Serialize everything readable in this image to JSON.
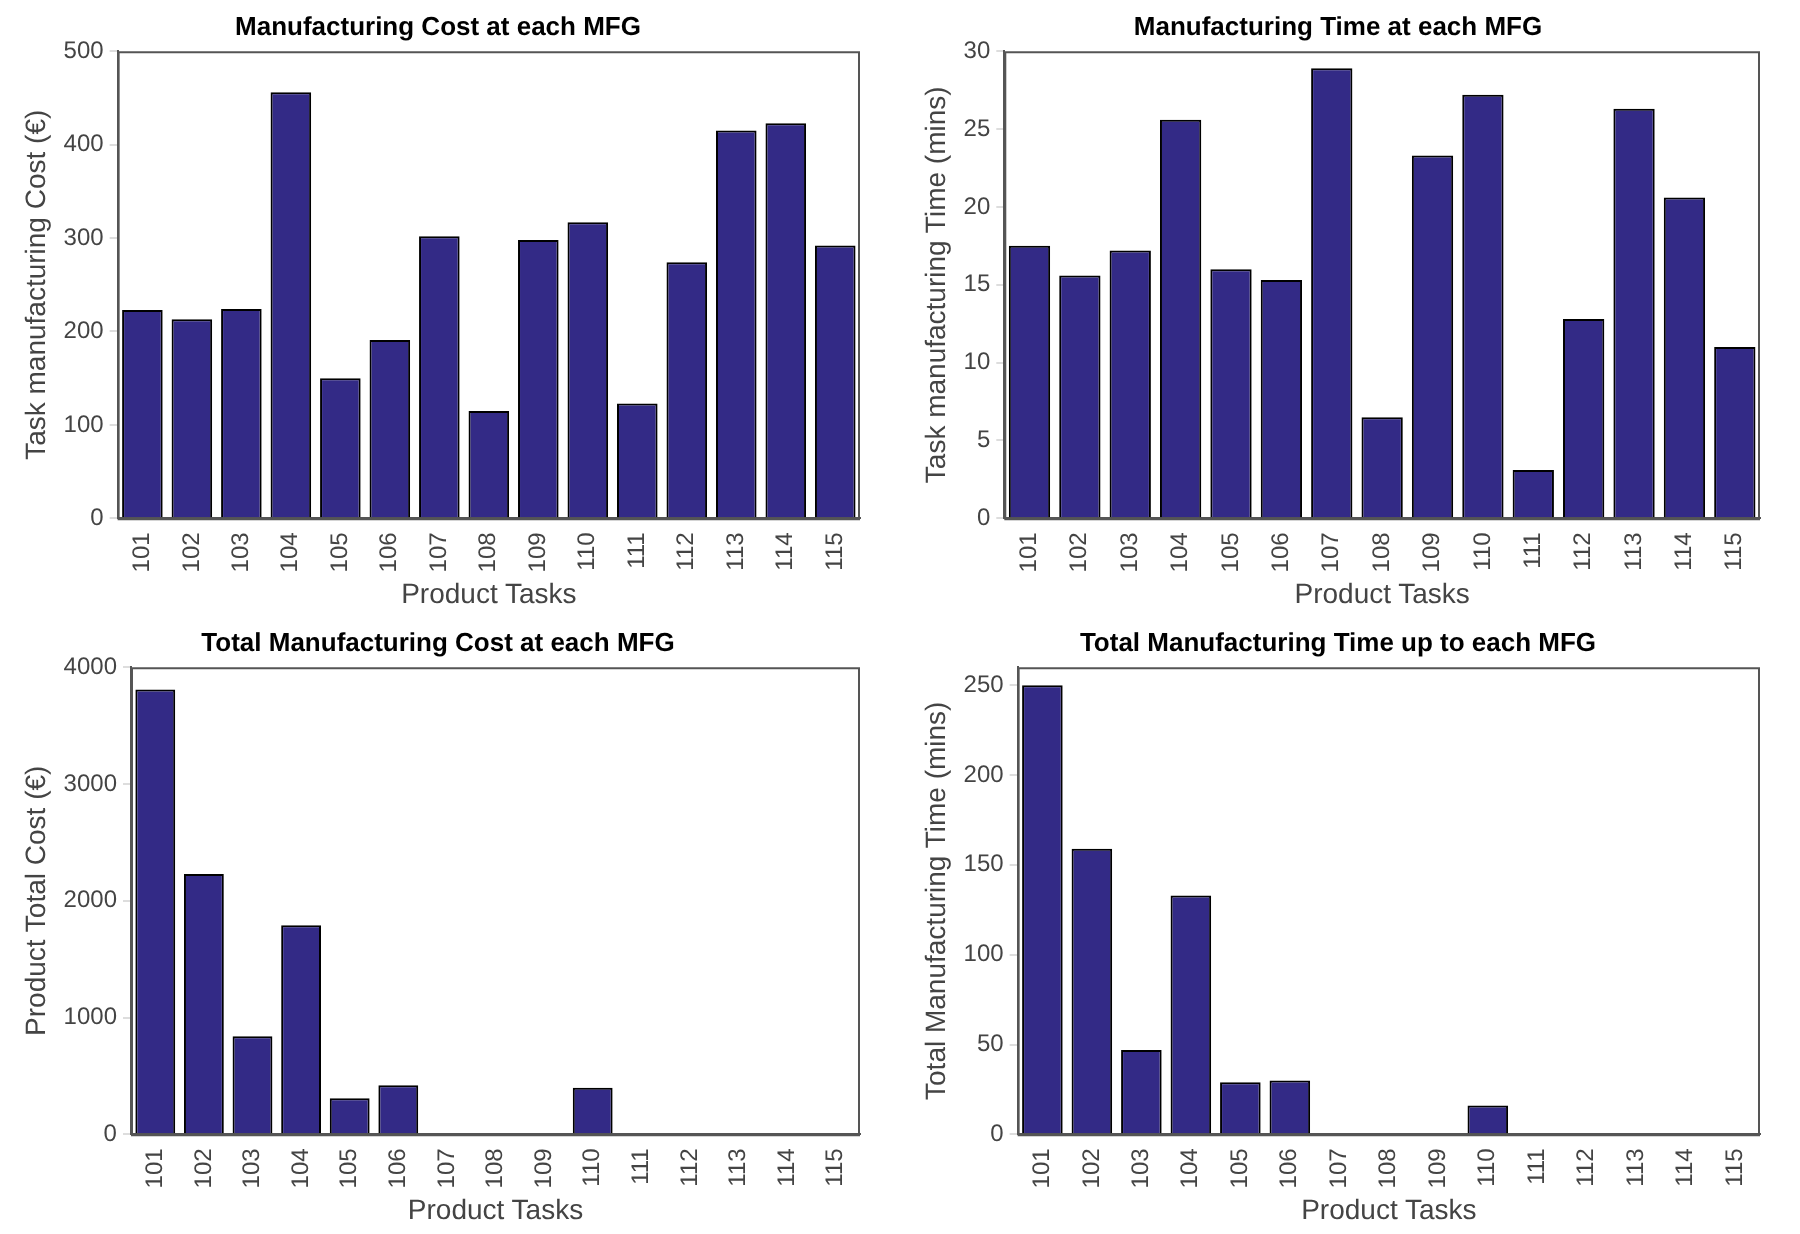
{
  "chart_data": [
    {
      "type": "bar",
      "title": "Manufacturing Cost at each MFG",
      "xlabel": "Product Tasks",
      "ylabel": "Task manufacturing Cost (€)",
      "categories": [
        "101",
        "102",
        "103",
        "104",
        "105",
        "106",
        "107",
        "108",
        "109",
        "110",
        "111",
        "112",
        "113",
        "114",
        "115"
      ],
      "values": [
        223,
        213,
        224,
        456,
        150,
        191,
        302,
        115,
        298,
        317,
        123,
        274,
        415,
        423,
        292
      ],
      "color": "#332a86",
      "ylim": [
        0,
        500
      ],
      "yticks": [
        0,
        100,
        200,
        300,
        400,
        500
      ],
      "grid": false,
      "legend": false
    },
    {
      "type": "bar",
      "title": "Manufacturing Time at each MFG",
      "xlabel": "Product Tasks",
      "ylabel": "Task manufacturing Time (mins)",
      "categories": [
        "101",
        "102",
        "103",
        "104",
        "105",
        "106",
        "107",
        "108",
        "109",
        "110",
        "111",
        "112",
        "113",
        "114",
        "115"
      ],
      "values": [
        17.5,
        15.6,
        17.2,
        25.6,
        16.0,
        15.3,
        28.9,
        6.5,
        23.3,
        27.2,
        3.1,
        12.8,
        26.3,
        20.6,
        11.0
      ],
      "color": "#332a86",
      "ylim": [
        0,
        30
      ],
      "yticks": [
        0,
        5,
        10,
        15,
        20,
        25,
        30
      ],
      "grid": false,
      "legend": false
    },
    {
      "type": "bar",
      "title": "Total Manufacturing Cost at each MFG",
      "xlabel": "Product Tasks",
      "ylabel": "Product Total Cost (€)",
      "categories": [
        "101",
        "102",
        "103",
        "104",
        "105",
        "106",
        "107",
        "108",
        "109",
        "110",
        "111",
        "112",
        "113",
        "114",
        "115"
      ],
      "values": [
        3810,
        2230,
        840,
        1790,
        310,
        420,
        0,
        0,
        0,
        400,
        0,
        0,
        0,
        0,
        0
      ],
      "color": "#332a86",
      "ylim": [
        0,
        4000
      ],
      "yticks": [
        0,
        1000,
        2000,
        3000,
        4000
      ],
      "grid": false,
      "legend": false
    },
    {
      "type": "bar",
      "title": "Total Manufacturing Time up to each MFG",
      "xlabel": "Product Tasks",
      "ylabel": "Total Manufacturing Time (mins)",
      "categories": [
        "101",
        "102",
        "103",
        "104",
        "105",
        "106",
        "107",
        "108",
        "109",
        "110",
        "111",
        "112",
        "113",
        "114",
        "115"
      ],
      "values": [
        250,
        159,
        47,
        133,
        29,
        30,
        0,
        0,
        0,
        16,
        0,
        0,
        0,
        0,
        0
      ],
      "color": "#332a86",
      "ylim": [
        0,
        260
      ],
      "yticks": [
        0,
        50,
        100,
        150,
        200,
        250
      ],
      "grid": false,
      "legend": false
    }
  ]
}
